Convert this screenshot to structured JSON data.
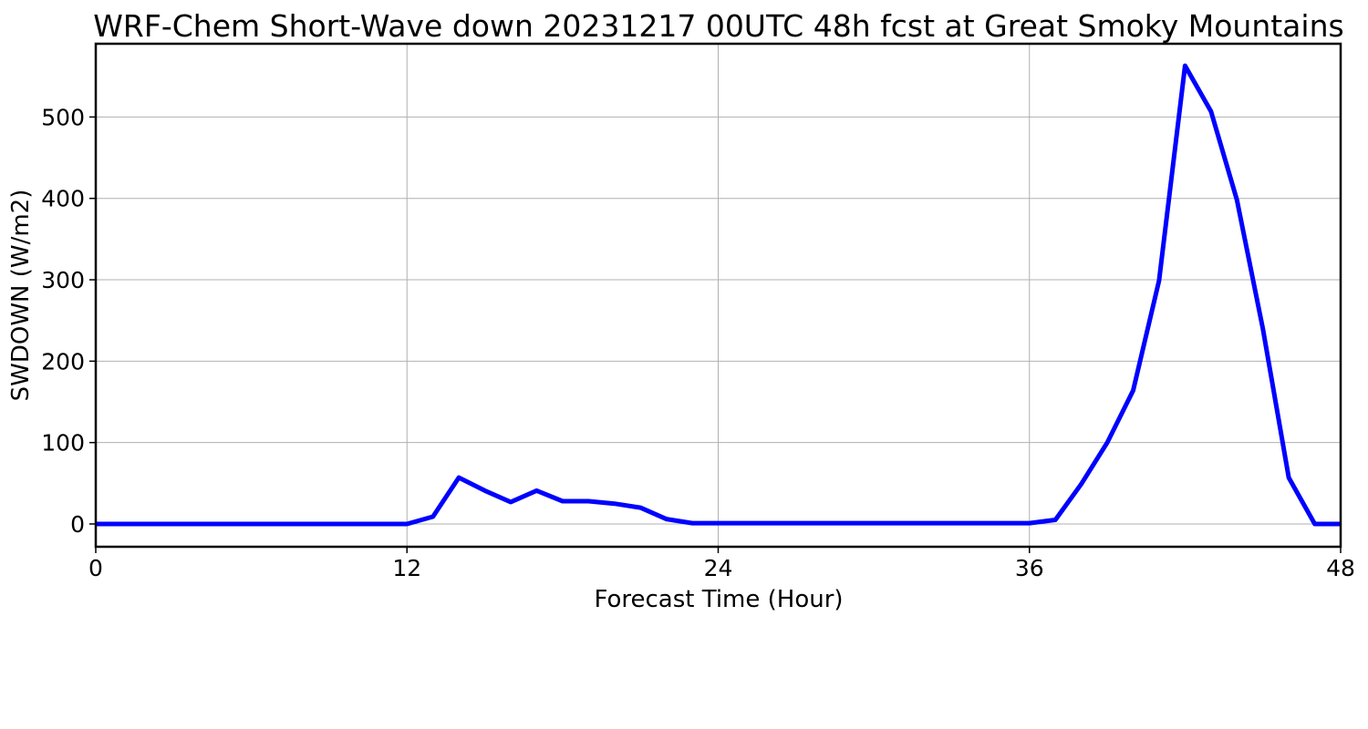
{
  "chart_data": {
    "type": "line",
    "title": "WRF-Chem Short-Wave down  20231217 00UTC 48h fcst at Great Smoky Mountains",
    "xlabel": "Forecast Time (Hour)",
    "ylabel": "SWDOWN  (W/m2)",
    "xlim": [
      0,
      48
    ],
    "ylim": [
      -28,
      590
    ],
    "xticks": [
      0,
      12,
      24,
      36,
      48
    ],
    "yticks": [
      0,
      100,
      200,
      300,
      400,
      500
    ],
    "grid": true,
    "series": [
      {
        "color": "#0000ff",
        "x": [
          0,
          1,
          2,
          3,
          4,
          5,
          6,
          7,
          8,
          9,
          10,
          11,
          12,
          13,
          14,
          15,
          16,
          17,
          18,
          19,
          20,
          21,
          22,
          23,
          24,
          25,
          26,
          27,
          28,
          29,
          30,
          31,
          32,
          33,
          34,
          35,
          36,
          37,
          38,
          39,
          40,
          41,
          42,
          43,
          44,
          45,
          46,
          47,
          48
        ],
        "y": [
          0,
          0,
          0,
          0,
          0,
          0,
          0,
          0,
          0,
          0,
          0,
          0,
          0,
          9,
          57,
          41,
          27,
          41,
          28,
          28,
          25,
          20,
          6,
          1,
          1,
          1,
          1,
          1,
          1,
          1,
          1,
          1,
          1,
          1,
          1,
          1,
          1,
          5,
          49,
          100,
          164,
          299,
          563,
          507,
          398,
          240,
          57,
          0,
          0
        ]
      }
    ]
  }
}
